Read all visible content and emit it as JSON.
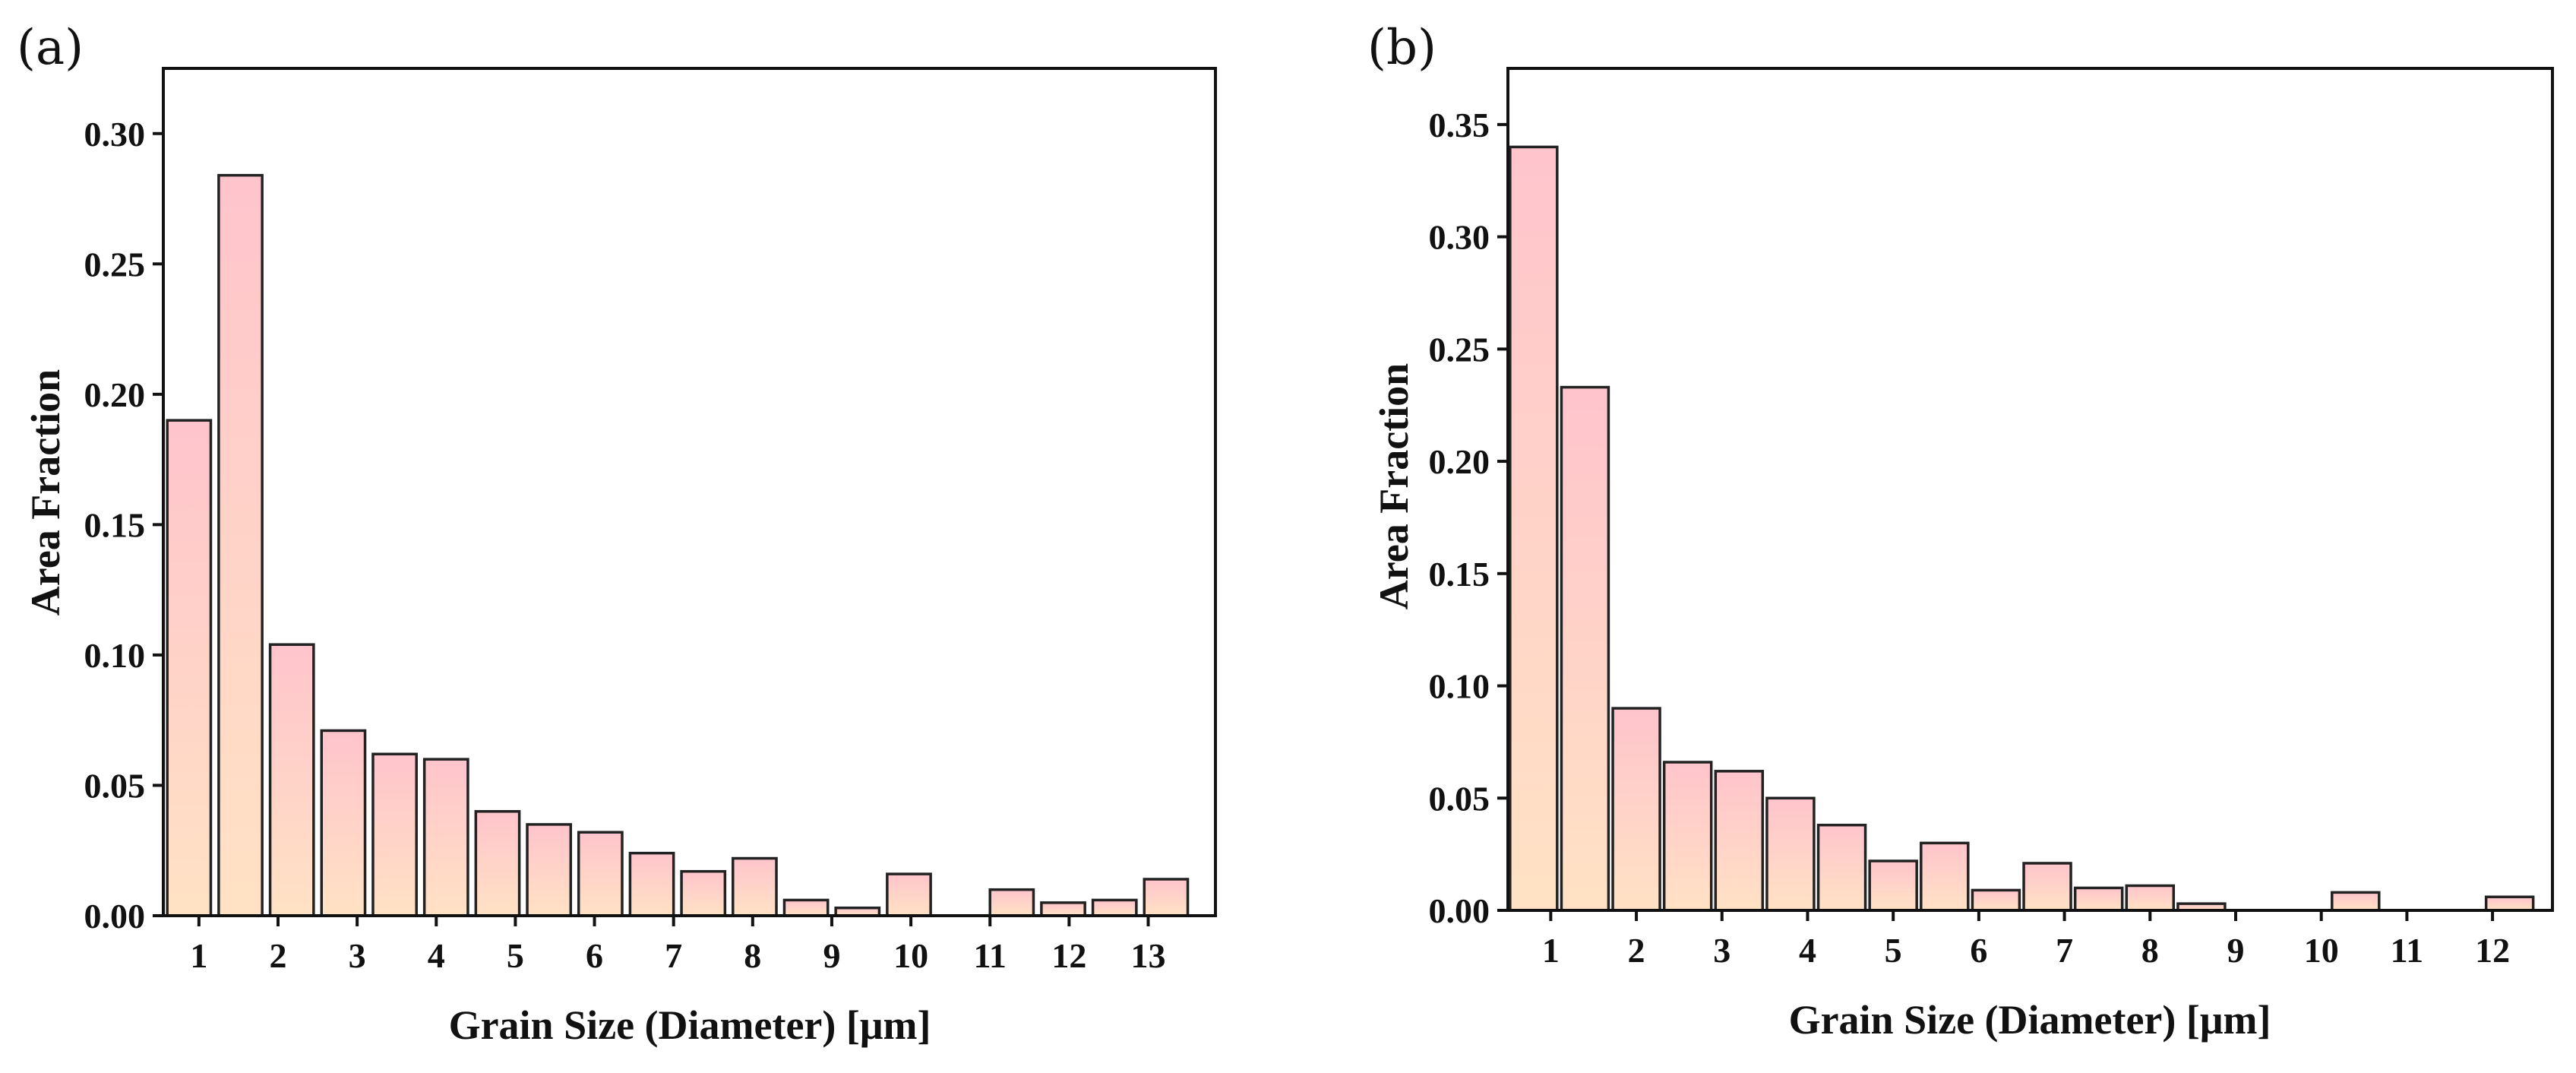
{
  "colors": {
    "bar_top": "#ffc4cc",
    "bar_bottom": "#ffe2c4",
    "outline": "#222222"
  },
  "chart_data": [
    {
      "panel_label": "(a)",
      "type": "bar",
      "title": "",
      "xlabel": "Grain Size (Diameter) [μm]",
      "ylabel": "Area Fraction",
      "ylim": [
        0,
        0.325
      ],
      "yticks": [
        "0.00",
        "0.05",
        "0.10",
        "0.15",
        "0.20",
        "0.25",
        "0.30"
      ],
      "xlim": [
        0.55,
        13.85
      ],
      "xticks": [
        "1",
        "2",
        "3",
        "4",
        "5",
        "6",
        "7",
        "8",
        "9",
        "10",
        "11",
        "12",
        "13"
      ],
      "bar_width": 0.55,
      "x": [
        0.875,
        1.525,
        2.175,
        2.825,
        3.475,
        4.125,
        4.775,
        5.425,
        6.075,
        6.725,
        7.375,
        8.025,
        8.675,
        9.325,
        9.975,
        10.625,
        11.275,
        11.925,
        12.575,
        13.225
      ],
      "values": [
        0.19,
        0.284,
        0.104,
        0.071,
        0.062,
        0.06,
        0.04,
        0.035,
        0.032,
        0.024,
        0.017,
        0.022,
        0.006,
        0.003,
        0.016,
        0.0,
        0.01,
        0.005,
        0.006,
        0.014
      ]
    },
    {
      "panel_label": "(b)",
      "type": "bar",
      "title": "",
      "xlabel": "Grain Size (Diameter) [μm]",
      "ylabel": "Area Fraction",
      "ylim": [
        0,
        0.375
      ],
      "yticks": [
        "0.00",
        "0.05",
        "0.10",
        "0.15",
        "0.20",
        "0.25",
        "0.30",
        "0.35"
      ],
      "xlim": [
        0.5,
        12.7
      ],
      "xticks": [
        "1",
        "2",
        "3",
        "4",
        "5",
        "6",
        "7",
        "8",
        "9",
        "10",
        "11",
        "12"
      ],
      "bar_width": 0.55,
      "x": [
        0.8,
        1.4,
        2.0,
        2.6,
        3.2,
        3.8,
        4.4,
        5.0,
        5.6,
        6.2,
        6.8,
        7.4,
        8.0,
        8.6,
        9.2,
        9.8,
        10.4,
        11.0,
        11.6,
        12.2
      ],
      "values": [
        0.34,
        0.233,
        0.09,
        0.066,
        0.062,
        0.05,
        0.038,
        0.022,
        0.03,
        0.009,
        0.021,
        0.01,
        0.011,
        0.003,
        0.0,
        0.0,
        0.008,
        0.0,
        0.0,
        0.006
      ]
    }
  ]
}
